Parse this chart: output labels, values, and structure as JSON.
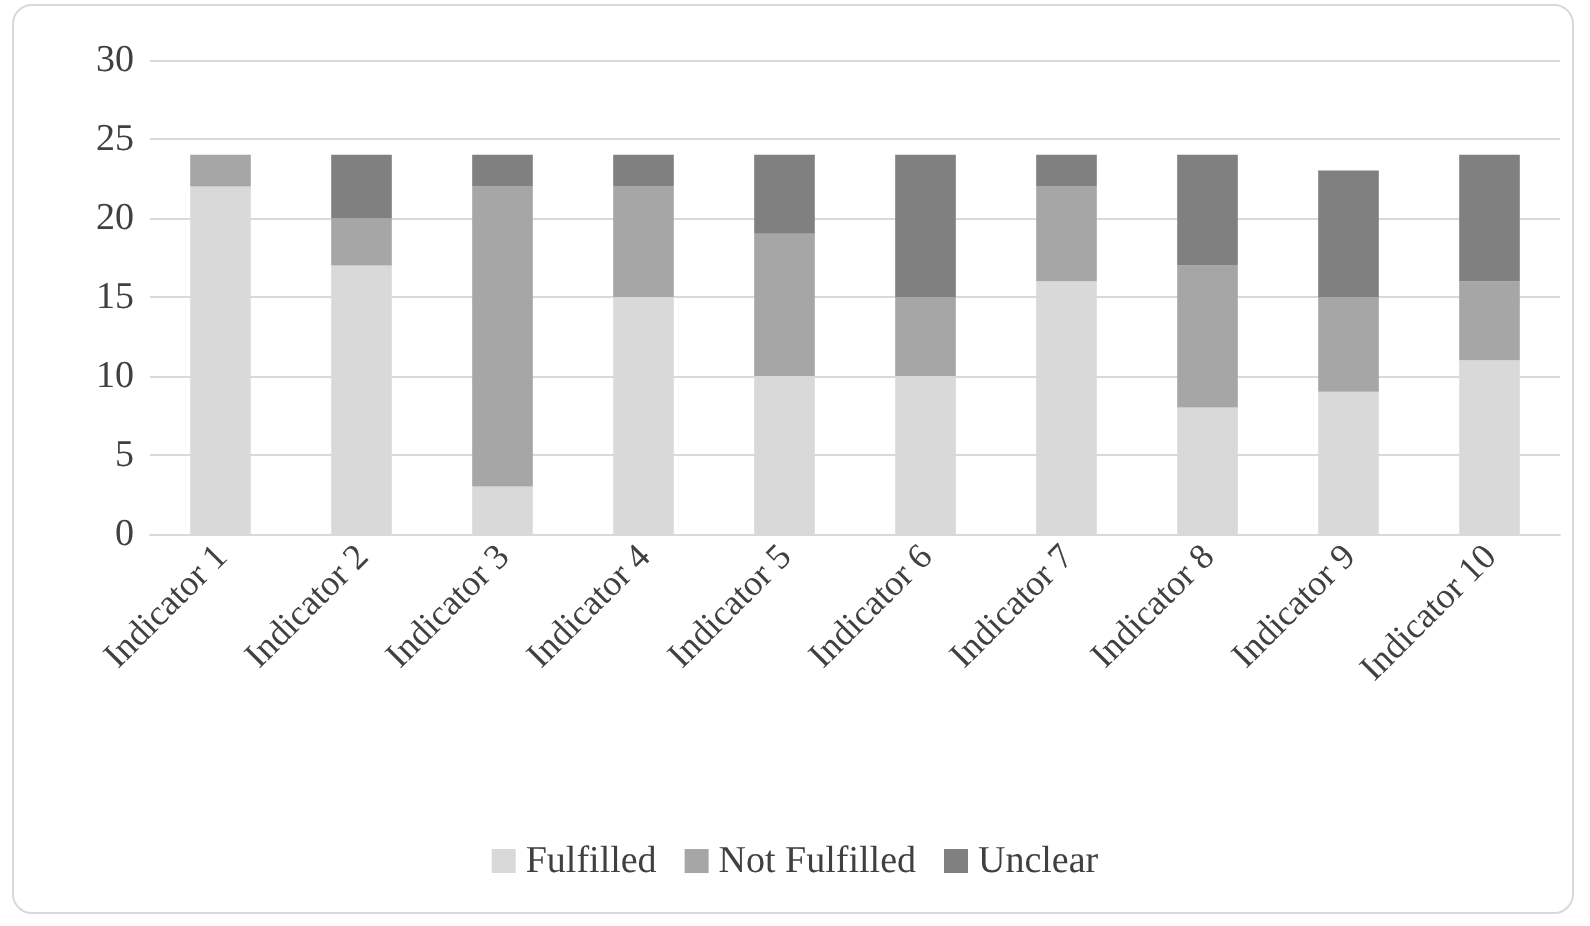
{
  "chart_data": {
    "type": "bar",
    "stacked": true,
    "categories": [
      "Indicator 1",
      "Indicator 2",
      "Indicator 3",
      "Indicator 4",
      "Indicator 5",
      "Indicator 6",
      "Indicator 7",
      "Indicator 8",
      "Indicator 9",
      "Indicator 10"
    ],
    "series": [
      {
        "name": "Fulfilled",
        "color": "#d9d9d9",
        "values": [
          22,
          17,
          3,
          15,
          10,
          10,
          16,
          8,
          9,
          11
        ]
      },
      {
        "name": "Not Fulfilled",
        "color": "#a6a6a6",
        "values": [
          2,
          3,
          19,
          7,
          9,
          5,
          6,
          9,
          6,
          5
        ]
      },
      {
        "name": "Unclear",
        "color": "#808080",
        "values": [
          0,
          4,
          2,
          2,
          5,
          9,
          2,
          7,
          8,
          8
        ]
      }
    ],
    "ylim": [
      0,
      30
    ],
    "yticks": [
      0,
      5,
      10,
      15,
      20,
      25,
      30
    ],
    "grid": "y",
    "legend": "bottom"
  }
}
